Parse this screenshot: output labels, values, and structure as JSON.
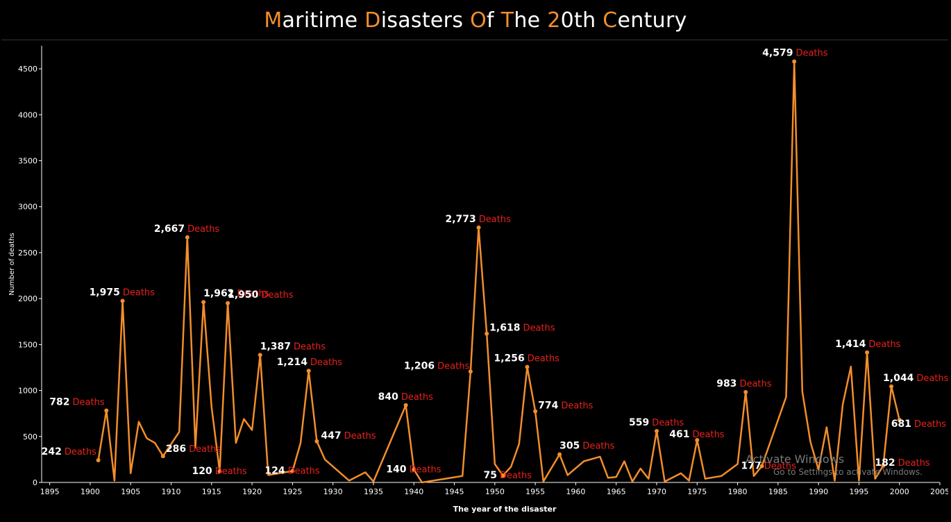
{
  "title": "Maritime Disasters Of The 20th Century",
  "colors": {
    "line": "#f28e2b",
    "accent": "#f28e2b",
    "death_label": "#e8211d",
    "value_label": "#ffffff",
    "background": "#000000"
  },
  "watermark": {
    "line1": "Activate Windows",
    "line2": "Go to Settings to activate Windows."
  },
  "chart_data": {
    "type": "line",
    "title": "Maritime Disasters Of The 20th Century",
    "xlabel": "The year of the disaster",
    "ylabel": "Number of deaths",
    "xlim": [
      1894,
      2005
    ],
    "ylim": [
      0,
      4750
    ],
    "x_ticks": [
      1895,
      1900,
      1905,
      1910,
      1915,
      1920,
      1925,
      1930,
      1935,
      1940,
      1945,
      1950,
      1955,
      1960,
      1965,
      1970,
      1975,
      1980,
      1985,
      1990,
      1995,
      2000,
      2005
    ],
    "y_ticks": [
      0,
      500,
      1000,
      1500,
      2000,
      2500,
      3000,
      3500,
      4000,
      4500
    ],
    "label_suffix": "Deaths",
    "grid": false,
    "series": [
      {
        "x": [
          1901,
          1902,
          1903,
          1904,
          1905,
          1906,
          1907,
          1908,
          1909,
          1911,
          1912,
          1913,
          1914,
          1915,
          1916,
          1917,
          1918,
          1919,
          1920,
          1921,
          1922,
          1925,
          1926,
          1927,
          1928,
          1929,
          1932,
          1934,
          1935,
          1939,
          1940,
          1941,
          1946,
          1947,
          1948,
          1949,
          1950,
          1951,
          1952,
          1953,
          1954,
          1955,
          1956,
          1958,
          1959,
          1961,
          1963,
          1964,
          1965,
          1966,
          1967,
          1968,
          1969,
          1970,
          1971,
          1973,
          1974,
          1975,
          1976,
          1978,
          1980,
          1981,
          1982,
          1983,
          1986,
          1987,
          1988,
          1989,
          1990,
          1991,
          1992,
          1993,
          1994,
          1995,
          1996,
          1997,
          1998,
          1999,
          2000
        ],
        "y": [
          242,
          782,
          20,
          1975,
          100,
          660,
          480,
          430,
          286,
          550,
          2667,
          380,
          1962,
          820,
          120,
          1950,
          430,
          690,
          570,
          1387,
          80,
          124,
          430,
          1214,
          447,
          250,
          20,
          110,
          10,
          840,
          140,
          0,
          70,
          1206,
          2773,
          1618,
          200,
          75,
          170,
          420,
          1256,
          774,
          10,
          305,
          80,
          230,
          280,
          50,
          60,
          230,
          10,
          150,
          40,
          559,
          10,
          100,
          20,
          461,
          40,
          70,
          200,
          983,
          70,
          177,
          930,
          4579,
          990,
          440,
          140,
          600,
          20,
          850,
          1260,
          20,
          1414,
          40,
          182,
          1044,
          681
        ]
      }
    ],
    "annotations": [
      {
        "x": 1901,
        "y": 242,
        "text": "242"
      },
      {
        "x": 1902,
        "y": 782,
        "text": "782"
      },
      {
        "x": 1904,
        "y": 1975,
        "text": "1,975"
      },
      {
        "x": 1909,
        "y": 286,
        "text": "286"
      },
      {
        "x": 1912,
        "y": 2667,
        "text": "2,667"
      },
      {
        "x": 1914,
        "y": 1962,
        "text": "1,962"
      },
      {
        "x": 1916,
        "y": 120,
        "text": "120"
      },
      {
        "x": 1917,
        "y": 1950,
        "text": "1,950"
      },
      {
        "x": 1921,
        "y": 1387,
        "text": "1,387"
      },
      {
        "x": 1925,
        "y": 124,
        "text": "124"
      },
      {
        "x": 1927,
        "y": 1214,
        "text": "1,214"
      },
      {
        "x": 1928,
        "y": 447,
        "text": "447"
      },
      {
        "x": 1939,
        "y": 840,
        "text": "840"
      },
      {
        "x": 1940,
        "y": 140,
        "text": "140"
      },
      {
        "x": 1947,
        "y": 1206,
        "text": "1,206"
      },
      {
        "x": 1948,
        "y": 2773,
        "text": "2,773"
      },
      {
        "x": 1949,
        "y": 1618,
        "text": "1,618"
      },
      {
        "x": 1951,
        "y": 75,
        "text": "75"
      },
      {
        "x": 1954,
        "y": 1256,
        "text": "1,256"
      },
      {
        "x": 1955,
        "y": 774,
        "text": "774"
      },
      {
        "x": 1958,
        "y": 305,
        "text": "305"
      },
      {
        "x": 1970,
        "y": 559,
        "text": "559"
      },
      {
        "x": 1975,
        "y": 461,
        "text": "461"
      },
      {
        "x": 1981,
        "y": 983,
        "text": "983"
      },
      {
        "x": 1983,
        "y": 177,
        "text": "177"
      },
      {
        "x": 1987,
        "y": 4579,
        "text": "4,579"
      },
      {
        "x": 1996,
        "y": 1414,
        "text": "1,414"
      },
      {
        "x": 1998,
        "y": 182,
        "text": "182"
      },
      {
        "x": 1999,
        "y": 1044,
        "text": "1,044"
      },
      {
        "x": 2000,
        "y": 681,
        "text": "681"
      }
    ]
  }
}
